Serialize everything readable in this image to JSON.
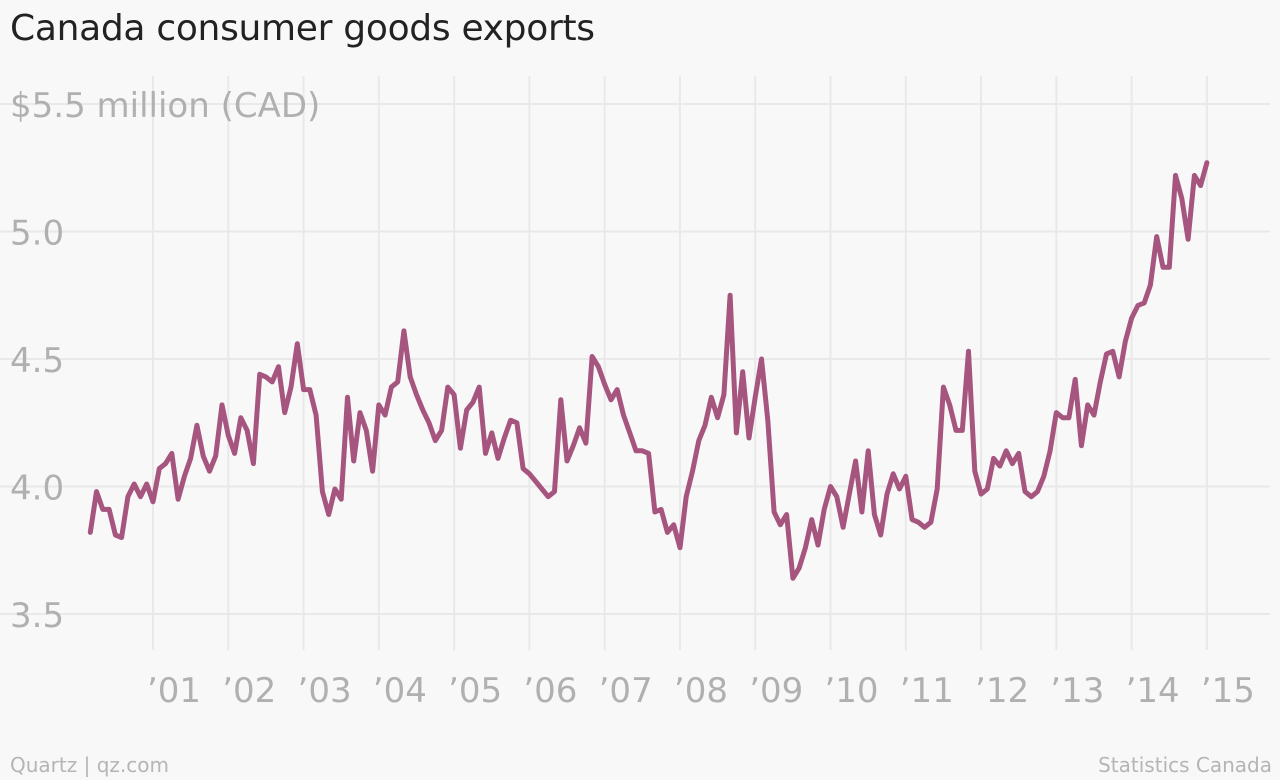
{
  "title": "Canada consumer goods exports",
  "footer": {
    "left": "Quartz | qz.com",
    "right": "Statistics Canada"
  },
  "colors": {
    "line": "#a6557f",
    "grid": "#e9e9e9",
    "tick_text": "#b0b0b0",
    "background": "#f8f8f8"
  },
  "chart_data": {
    "type": "line",
    "title": "Canada consumer goods exports",
    "xlabel": "",
    "ylabel": "",
    "unit_label": "$5.5 million (CAD)",
    "ylim": [
      3.3,
      5.6
    ],
    "xlim": [
      "2000-02",
      "2015-05"
    ],
    "grid": true,
    "y_ticks": [
      {
        "value": 5.5,
        "label": "$5.5 million (CAD)"
      },
      {
        "value": 5.0,
        "label": "5.0"
      },
      {
        "value": 4.5,
        "label": "4.5"
      },
      {
        "value": 4.0,
        "label": "4.0"
      },
      {
        "value": 3.5,
        "label": "3.5"
      }
    ],
    "x_ticks": [
      {
        "date": "2001-01",
        "label": "’01"
      },
      {
        "date": "2002-01",
        "label": "’02"
      },
      {
        "date": "2003-01",
        "label": "’03"
      },
      {
        "date": "2004-01",
        "label": "’04"
      },
      {
        "date": "2005-01",
        "label": "’05"
      },
      {
        "date": "2006-01",
        "label": "’06"
      },
      {
        "date": "2007-01",
        "label": "’07"
      },
      {
        "date": "2008-01",
        "label": "’08"
      },
      {
        "date": "2009-01",
        "label": "’09"
      },
      {
        "date": "2010-01",
        "label": "’10"
      },
      {
        "date": "2011-01",
        "label": "’11"
      },
      {
        "date": "2012-01",
        "label": "’12"
      },
      {
        "date": "2013-01",
        "label": "’13"
      },
      {
        "date": "2014-01",
        "label": "’14"
      },
      {
        "date": "2015-01",
        "label": "’15"
      }
    ],
    "series": [
      {
        "values": [
          [
            "2000-03",
            3.82
          ],
          [
            "2000-04",
            3.98
          ],
          [
            "2000-05",
            3.91
          ],
          [
            "2000-06",
            3.91
          ],
          [
            "2000-07",
            3.81
          ],
          [
            "2000-08",
            3.8
          ],
          [
            "2000-09",
            3.96
          ],
          [
            "2000-10",
            4.01
          ],
          [
            "2000-11",
            3.96
          ],
          [
            "2000-12",
            4.01
          ],
          [
            "2001-01",
            3.94
          ],
          [
            "2001-02",
            4.07
          ],
          [
            "2001-03",
            4.09
          ],
          [
            "2001-04",
            4.13
          ],
          [
            "2001-05",
            3.95
          ],
          [
            "2001-06",
            4.04
          ],
          [
            "2001-07",
            4.11
          ],
          [
            "2001-08",
            4.24
          ],
          [
            "2001-09",
            4.12
          ],
          [
            "2001-10",
            4.06
          ],
          [
            "2001-11",
            4.12
          ],
          [
            "2001-12",
            4.32
          ],
          [
            "2002-01",
            4.2
          ],
          [
            "2002-02",
            4.13
          ],
          [
            "2002-03",
            4.27
          ],
          [
            "2002-04",
            4.22
          ],
          [
            "2002-05",
            4.09
          ],
          [
            "2002-06",
            4.44
          ],
          [
            "2002-07",
            4.43
          ],
          [
            "2002-08",
            4.41
          ],
          [
            "2002-09",
            4.47
          ],
          [
            "2002-10",
            4.29
          ],
          [
            "2002-11",
            4.39
          ],
          [
            "2002-12",
            4.56
          ],
          [
            "2003-01",
            4.38
          ],
          [
            "2003-02",
            4.38
          ],
          [
            "2003-03",
            4.28
          ],
          [
            "2003-04",
            3.98
          ],
          [
            "2003-05",
            3.89
          ],
          [
            "2003-06",
            3.99
          ],
          [
            "2003-07",
            3.95
          ],
          [
            "2003-08",
            4.35
          ],
          [
            "2003-09",
            4.1
          ],
          [
            "2003-10",
            4.29
          ],
          [
            "2003-11",
            4.22
          ],
          [
            "2003-12",
            4.06
          ],
          [
            "2004-01",
            4.32
          ],
          [
            "2004-02",
            4.28
          ],
          [
            "2004-03",
            4.39
          ],
          [
            "2004-04",
            4.41
          ],
          [
            "2004-05",
            4.61
          ],
          [
            "2004-06",
            4.43
          ],
          [
            "2004-07",
            4.36
          ],
          [
            "2004-08",
            4.3
          ],
          [
            "2004-09",
            4.25
          ],
          [
            "2004-10",
            4.18
          ],
          [
            "2004-11",
            4.22
          ],
          [
            "2004-12",
            4.39
          ],
          [
            "2005-01",
            4.36
          ],
          [
            "2005-02",
            4.15
          ],
          [
            "2005-03",
            4.3
          ],
          [
            "2005-04",
            4.33
          ],
          [
            "2005-05",
            4.39
          ],
          [
            "2005-06",
            4.13
          ],
          [
            "2005-07",
            4.21
          ],
          [
            "2005-08",
            4.11
          ],
          [
            "2005-09",
            4.19
          ],
          [
            "2005-10",
            4.26
          ],
          [
            "2005-11",
            4.25
          ],
          [
            "2005-12",
            4.07
          ],
          [
            "2006-01",
            4.05
          ],
          [
            "2006-02",
            4.02
          ],
          [
            "2006-03",
            3.99
          ],
          [
            "2006-04",
            3.96
          ],
          [
            "2006-05",
            3.98
          ],
          [
            "2006-06",
            4.34
          ],
          [
            "2006-07",
            4.1
          ],
          [
            "2006-08",
            4.16
          ],
          [
            "2006-09",
            4.23
          ],
          [
            "2006-10",
            4.17
          ],
          [
            "2006-11",
            4.51
          ],
          [
            "2006-12",
            4.47
          ],
          [
            "2007-01",
            4.4
          ],
          [
            "2007-02",
            4.34
          ],
          [
            "2007-03",
            4.38
          ],
          [
            "2007-04",
            4.28
          ],
          [
            "2007-05",
            4.21
          ],
          [
            "2007-06",
            4.14
          ],
          [
            "2007-07",
            4.14
          ],
          [
            "2007-08",
            4.13
          ],
          [
            "2007-09",
            3.9
          ],
          [
            "2007-10",
            3.91
          ],
          [
            "2007-11",
            3.82
          ],
          [
            "2007-12",
            3.85
          ],
          [
            "2008-01",
            3.76
          ],
          [
            "2008-02",
            3.96
          ],
          [
            "2008-03",
            4.06
          ],
          [
            "2008-04",
            4.18
          ],
          [
            "2008-05",
            4.24
          ],
          [
            "2008-06",
            4.35
          ],
          [
            "2008-07",
            4.27
          ],
          [
            "2008-08",
            4.36
          ],
          [
            "2008-09",
            4.75
          ],
          [
            "2008-10",
            4.21
          ],
          [
            "2008-11",
            4.45
          ],
          [
            "2008-12",
            4.19
          ],
          [
            "2009-01",
            4.35
          ],
          [
            "2009-02",
            4.5
          ],
          [
            "2009-03",
            4.26
          ],
          [
            "2009-04",
            3.9
          ],
          [
            "2009-05",
            3.85
          ],
          [
            "2009-06",
            3.89
          ],
          [
            "2009-07",
            3.64
          ],
          [
            "2009-08",
            3.68
          ],
          [
            "2009-09",
            3.76
          ],
          [
            "2009-10",
            3.87
          ],
          [
            "2009-11",
            3.77
          ],
          [
            "2009-12",
            3.91
          ],
          [
            "2010-01",
            4.0
          ],
          [
            "2010-02",
            3.96
          ],
          [
            "2010-03",
            3.84
          ],
          [
            "2010-04",
            3.97
          ],
          [
            "2010-05",
            4.1
          ],
          [
            "2010-06",
            3.9
          ],
          [
            "2010-07",
            4.14
          ],
          [
            "2010-08",
            3.89
          ],
          [
            "2010-09",
            3.81
          ],
          [
            "2010-10",
            3.97
          ],
          [
            "2010-11",
            4.05
          ],
          [
            "2010-12",
            3.99
          ],
          [
            "2011-01",
            4.04
          ],
          [
            "2011-02",
            3.87
          ],
          [
            "2011-03",
            3.86
          ],
          [
            "2011-04",
            3.84
          ],
          [
            "2011-05",
            3.86
          ],
          [
            "2011-06",
            3.99
          ],
          [
            "2011-07",
            4.39
          ],
          [
            "2011-08",
            4.32
          ],
          [
            "2011-09",
            4.22
          ],
          [
            "2011-10",
            4.22
          ],
          [
            "2011-11",
            4.53
          ],
          [
            "2011-12",
            4.06
          ],
          [
            "2012-01",
            3.97
          ],
          [
            "2012-02",
            3.99
          ],
          [
            "2012-03",
            4.11
          ],
          [
            "2012-04",
            4.08
          ],
          [
            "2012-05",
            4.14
          ],
          [
            "2012-06",
            4.09
          ],
          [
            "2012-07",
            4.13
          ],
          [
            "2012-08",
            3.98
          ],
          [
            "2012-09",
            3.96
          ],
          [
            "2012-10",
            3.98
          ],
          [
            "2012-11",
            4.04
          ],
          [
            "2012-12",
            4.14
          ],
          [
            "2013-01",
            4.29
          ],
          [
            "2013-02",
            4.27
          ],
          [
            "2013-03",
            4.27
          ],
          [
            "2013-04",
            4.42
          ],
          [
            "2013-05",
            4.16
          ],
          [
            "2013-06",
            4.32
          ],
          [
            "2013-07",
            4.28
          ],
          [
            "2013-08",
            4.41
          ],
          [
            "2013-09",
            4.52
          ],
          [
            "2013-10",
            4.53
          ],
          [
            "2013-11",
            4.43
          ],
          [
            "2013-12",
            4.57
          ],
          [
            "2014-01",
            4.66
          ],
          [
            "2014-02",
            4.71
          ],
          [
            "2014-03",
            4.72
          ],
          [
            "2014-04",
            4.79
          ],
          [
            "2014-05",
            4.98
          ],
          [
            "2014-06",
            4.86
          ],
          [
            "2014-07",
            4.86
          ],
          [
            "2014-08",
            5.22
          ],
          [
            "2014-09",
            5.13
          ],
          [
            "2014-10",
            4.97
          ],
          [
            "2014-11",
            5.22
          ],
          [
            "2014-12",
            5.18
          ],
          [
            "2015-01",
            5.27
          ]
        ]
      }
    ]
  }
}
